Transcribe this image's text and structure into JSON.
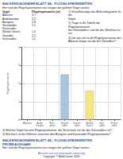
{
  "chart_data": {
    "type": "bar",
    "title": "BALKENDIAGRAMM BLATT 4A - FLÜGELSPANNWEITEN",
    "subtitle": "Hier sind die Flügelspannweiten von einigen der größten Vögel sortiert.",
    "title_color": "#3355aa",
    "table": {
      "header": [
        "Vogel",
        "Flügelspannweite (m)"
      ],
      "rows": [
        [
          "Albatros",
          "3,7"
        ],
        [
          "Andenkondor",
          "3,2"
        ],
        [
          "Bartgeier",
          "2,8"
        ],
        [
          "Strandadler",
          "2,5"
        ],
        [
          "Kaiseradler",
          null
        ],
        [
          "Weißer Storch",
          "1,6"
        ],
        [
          "Seeadler",
          "2,2"
        ],
        [
          "Schreiadler",
          "1,5"
        ]
      ]
    },
    "annotations": {
      "tasks": [
        "1) Vervollständige das Balkendiagramm für die\nVögel.",
        "2) Trage in die Tabelle die Flügelspannweite\ndes Strandadlers und die des Weißstorchs ein.",
        "3) Um wie viel ist die Flügelspannweite des\nAlbatros länger als die des Seeadlers?"
      ],
      "questions": [
        "4) Welcher Vogel hat eine Flügelspannweite, die 30cm mehr als die des Schreiadlers ist?",
        "5) Wie hoch ist die Differenz zwischen den Bartgeier und Kaiseradler Flügelspannweite?"
      ],
      "footer_title": "BALKENDIAGRAMM BLATT 4A - FLÜGELSPANNWEITEN PROBEAUSGABE",
      "footer_subtitle": "Hier sind die Flügelspannweiten von einigen der größten Vögel sortiert.",
      "footer_web": "Besucht uns auf www.math-center.org",
      "footer_copyright": "Copyright © MathCenter 2020"
    },
    "ylabel": "Flügelspannweite",
    "categories": [
      "Albatros",
      "Ande-\nkondor",
      "Bart-\ngeier",
      "Strand-\nadler",
      "Kaiser-\nadler",
      "Weißer\nStorch",
      "See-\nadler",
      "Schrei-\nadler"
    ],
    "values": [
      null,
      null,
      null,
      2.5,
      null,
      1.6,
      null,
      null
    ],
    "colors": [
      "#a8c4e0",
      "#a8c4e0",
      "#a8c4e0",
      "#a8c4e0",
      "#a8c4e0",
      "#f5e87a",
      "#a8c4e0",
      "#a8c4e0"
    ],
    "ylim": [
      0,
      4
    ],
    "yticks": [
      0,
      1,
      2,
      3,
      4
    ],
    "grid": true
  }
}
